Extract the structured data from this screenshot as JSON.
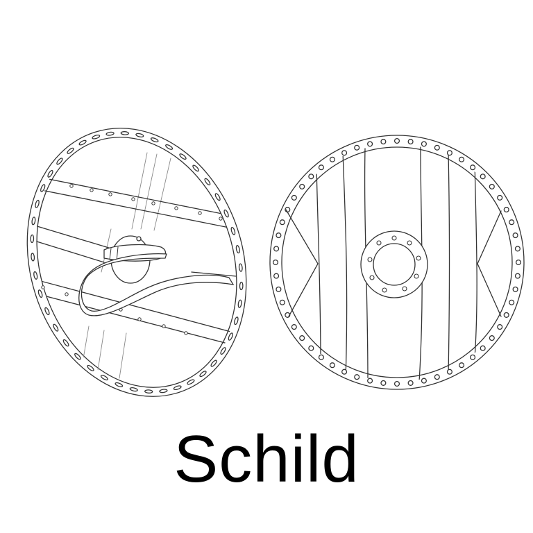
{
  "caption": "Schild",
  "colors": {
    "background": "#ffffff",
    "ink": "#000000",
    "line": "#333333"
  },
  "illustrations": [
    {
      "icon": "shield-back-view-icon",
      "description_name": "shield-back"
    },
    {
      "icon": "shield-front-view-icon",
      "description_name": "shield-front"
    }
  ]
}
